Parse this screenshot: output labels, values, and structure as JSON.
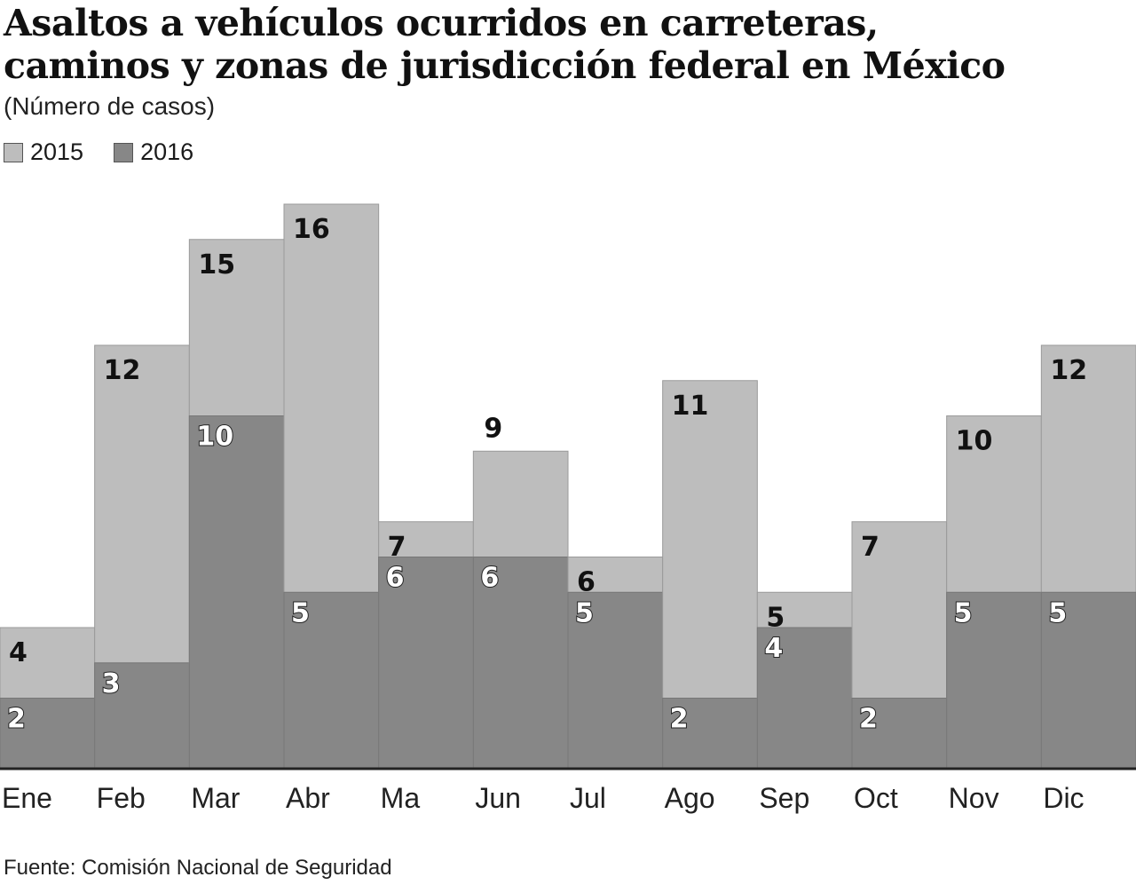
{
  "chart_data": {
    "type": "bar",
    "title": "Asaltos a vehículos ocurridos en carreteras, caminos y zonas de jurisdicción federal en  México",
    "title_lines": [
      "Asaltos a vehículos ocurridos en carreteras,",
      "caminos y zonas de jurisdicción federal en  México"
    ],
    "subtitle": "(Número de casos)",
    "categories": [
      "Ene",
      "Feb",
      "Mar",
      "Abr",
      "Ma",
      "Jun",
      "Jul",
      "Ago",
      "Sep",
      "Oct",
      "Nov",
      "Dic"
    ],
    "series": [
      {
        "name": "2015",
        "color": "#bdbdbd",
        "values": [
          4,
          12,
          15,
          16,
          7,
          9,
          6,
          11,
          5,
          7,
          10,
          12
        ]
      },
      {
        "name": "2016",
        "color": "#878787",
        "values": [
          2,
          3,
          10,
          5,
          6,
          6,
          5,
          2,
          4,
          2,
          5,
          5
        ]
      }
    ],
    "ylim": [
      0,
      16
    ],
    "xlabel": "",
    "ylabel": "",
    "grid": false,
    "legend_position": "top-left",
    "source": "Fuente: Comisión Nacional de Seguridad"
  }
}
